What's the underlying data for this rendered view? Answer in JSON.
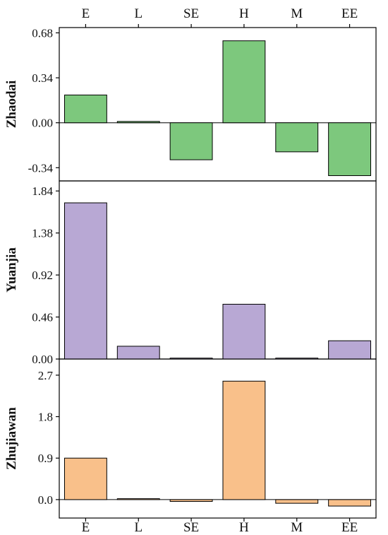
{
  "chart_data": {
    "type": "bar",
    "categories": [
      "E",
      "L",
      "SE",
      "H",
      "M",
      "EE"
    ],
    "panels": [
      {
        "ylabel": "Zhaodai",
        "ylim": [
          -0.44,
          0.72
        ],
        "ticks": [
          -0.34,
          0.0,
          0.34,
          0.68
        ],
        "tick_labels": [
          "-0.34",
          "0.00",
          "0.34",
          "0.68"
        ],
        "values": [
          0.21,
          0.01,
          -0.28,
          0.62,
          -0.22,
          -0.4
        ],
        "color": "#7dc87d"
      },
      {
        "ylabel": "Yuanjia",
        "ylim": [
          0.0,
          1.95
        ],
        "ticks": [
          0.0,
          0.46,
          0.92,
          1.38,
          1.84
        ],
        "tick_labels": [
          "0.00",
          "0.46",
          "0.92",
          "1.38",
          "1.84"
        ],
        "values": [
          1.71,
          0.14,
          0.01,
          0.6,
          0.01,
          0.2
        ],
        "color": "#b8a8d4"
      },
      {
        "ylabel": "Zhujiawan",
        "ylim": [
          -0.4,
          3.05
        ],
        "ticks": [
          0.0,
          0.9,
          1.8,
          2.7
        ],
        "tick_labels": [
          "0.0",
          "0.9",
          "1.8",
          "2.7"
        ],
        "values": [
          0.9,
          0.02,
          -0.04,
          2.57,
          -0.08,
          -0.14
        ],
        "color": "#f9c08a"
      }
    ]
  }
}
